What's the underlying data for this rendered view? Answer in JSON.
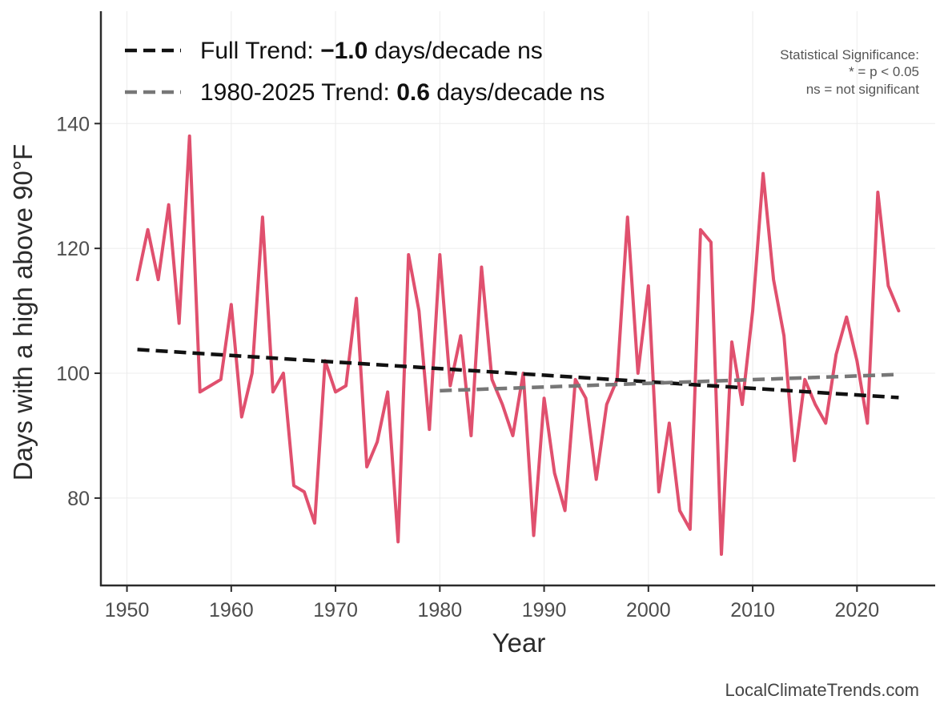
{
  "chart_data": {
    "type": "line",
    "xlabel": "Year",
    "ylabel": "Days with a high above 90°F",
    "xlim": [
      1947.5,
      2027.5
    ],
    "ylim": [
      66,
      158
    ],
    "xticks": [
      1950,
      1960,
      1970,
      1980,
      1990,
      2000,
      2010,
      2020
    ],
    "yticks": [
      80,
      100,
      120,
      140
    ],
    "grid": true,
    "legend_position": "top-left",
    "series": [
      {
        "role": "observed",
        "color": "#e0506e",
        "x": [
          1951,
          1952,
          1953,
          1954,
          1955,
          1956,
          1957,
          1958,
          1959,
          1960,
          1961,
          1962,
          1963,
          1964,
          1965,
          1966,
          1967,
          1968,
          1969,
          1970,
          1971,
          1972,
          1973,
          1974,
          1975,
          1976,
          1977,
          1978,
          1979,
          1980,
          1981,
          1982,
          1983,
          1984,
          1985,
          1986,
          1987,
          1988,
          1989,
          1990,
          1991,
          1992,
          1993,
          1994,
          1995,
          1996,
          1997,
          1998,
          1999,
          2000,
          2001,
          2002,
          2003,
          2004,
          2005,
          2006,
          2007,
          2008,
          2009,
          2010,
          2011,
          2012,
          2013,
          2014,
          2015,
          2016,
          2017,
          2018,
          2019,
          2020,
          2021,
          2022,
          2023,
          2024
        ],
        "y": [
          115,
          123,
          115,
          127,
          108,
          138,
          97,
          98,
          99,
          111,
          93,
          100,
          125,
          97,
          100,
          82,
          81,
          76,
          102,
          97,
          98,
          112,
          85,
          89,
          97,
          73,
          119,
          110,
          91,
          119,
          98,
          106,
          90,
          117,
          99,
          95,
          90,
          100,
          74,
          96,
          84,
          78,
          99,
          96,
          83,
          95,
          99,
          125,
          100,
          114,
          81,
          92,
          78,
          75,
          123,
          121,
          71,
          105,
          95,
          110,
          132,
          115,
          106,
          86,
          99,
          95,
          92,
          103,
          109,
          102,
          92,
          129,
          114,
          110
        ]
      },
      {
        "role": "full-trend",
        "color": "#111111",
        "dash": true,
        "x": [
          1951,
          2024
        ],
        "y": [
          103.8,
          96.1
        ]
      },
      {
        "role": "recent-trend",
        "color": "#777777",
        "dash": true,
        "x": [
          1980,
          2024
        ],
        "y": [
          97.2,
          99.8
        ]
      }
    ]
  },
  "legend": {
    "full": {
      "prefix": "Full Trend: ",
      "value": "−1.0",
      "suffix": " days/decade ns",
      "color": "#111111"
    },
    "recent": {
      "prefix": "1980-2025 Trend: ",
      "value": "0.6",
      "suffix": " days/decade ns",
      "color": "#777777"
    }
  },
  "significance": {
    "line1": "Statistical Significance:",
    "line2": "* = p < 0.05",
    "line3": "ns = not significant"
  },
  "credit": "LocalClimateTrends.com"
}
